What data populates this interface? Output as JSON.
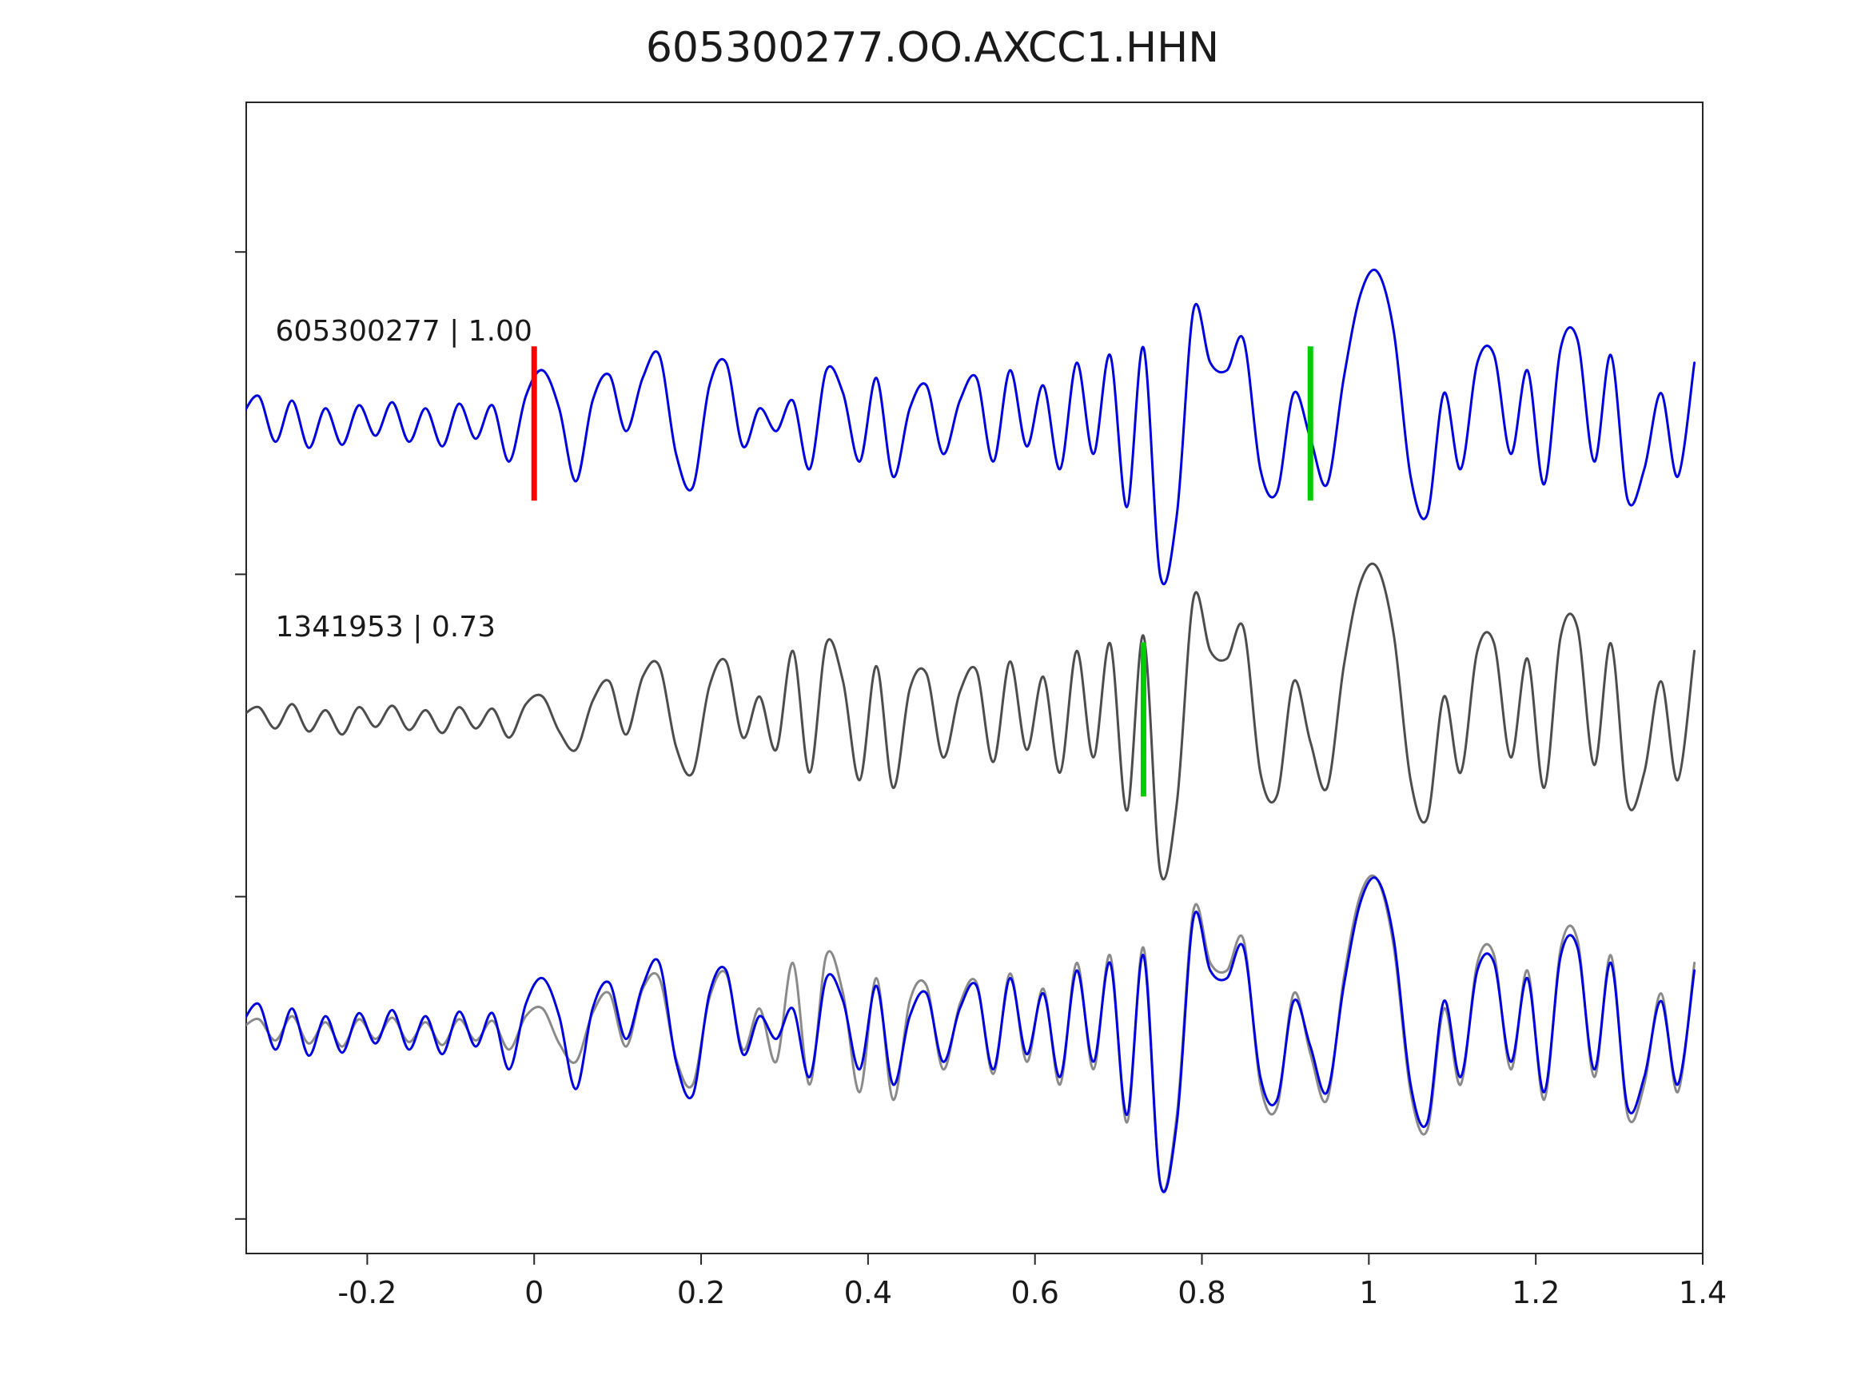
{
  "title": "605300277.OO.AXCC1.HHN",
  "colors": {
    "template_blue": "#0000dd",
    "detection_gray": "#4d4d4d",
    "overlay_gray": "#8a8a8a",
    "pick_red": "#ff0000",
    "pick_green": "#00cc00",
    "frame": "#262626",
    "text": "#1a1a1a"
  },
  "chart_data": {
    "type": "line",
    "title": "605300277.OO.AXCC1.HHN",
    "xlabel": "",
    "ylabel": "",
    "grid": false,
    "legend": null,
    "xlim": [
      -0.345,
      1.4
    ],
    "x_ticks": [
      -0.2,
      0,
      0.2,
      0.4,
      0.6,
      0.8,
      1,
      1.2,
      1.4
    ],
    "x_tick_labels": [
      "-0.2",
      "0",
      "0.2",
      "0.4",
      "0.6",
      "0.8",
      "1",
      "1.2",
      "1.4"
    ],
    "x_start": -0.35,
    "x_step": 0.02,
    "series": {
      "template": {
        "name": "605300277",
        "color": "#0000dd",
        "values": [
          0.05,
          0.18,
          -0.12,
          0.15,
          -0.16,
          0.1,
          -0.14,
          0.12,
          -0.08,
          0.14,
          -0.12,
          0.1,
          -0.15,
          0.13,
          -0.1,
          0.12,
          -0.25,
          0.18,
          0.35,
          0.1,
          -0.38,
          0.15,
          0.32,
          -0.05,
          0.3,
          0.45,
          -0.2,
          -0.42,
          0.25,
          0.4,
          -0.15,
          0.1,
          -0.05,
          0.15,
          -0.3,
          0.35,
          0.2,
          -0.25,
          0.3,
          -0.35,
          0.1,
          0.25,
          -0.2,
          0.15,
          0.3,
          -0.25,
          0.35,
          -0.15,
          0.25,
          -0.3,
          0.4,
          -0.2,
          0.45,
          -0.55,
          0.5,
          -1.0,
          -0.6,
          0.75,
          0.4,
          0.35,
          0.55,
          -0.3,
          -0.45,
          0.2,
          -0.1,
          -0.4,
          0.3,
          0.85,
          1.0,
          0.6,
          -0.35,
          -0.6,
          0.2,
          -0.3,
          0.4,
          0.45,
          -0.2,
          0.35,
          -0.4,
          0.5,
          0.55,
          -0.25,
          0.45,
          -0.5,
          -0.3,
          0.2,
          -0.35,
          0.4
        ]
      },
      "detection": {
        "name": "1341953",
        "color": "#4d4d4d",
        "values": [
          0.02,
          0.08,
          -0.06,
          0.1,
          -0.08,
          0.06,
          -0.1,
          0.08,
          -0.05,
          0.09,
          -0.07,
          0.06,
          -0.09,
          0.08,
          -0.06,
          0.07,
          -0.12,
          0.1,
          0.15,
          -0.08,
          -0.2,
          0.12,
          0.25,
          -0.1,
          0.28,
          0.35,
          -0.18,
          -0.35,
          0.22,
          0.38,
          -0.12,
          0.15,
          -0.2,
          0.45,
          -0.35,
          0.5,
          0.25,
          -0.4,
          0.35,
          -0.45,
          0.2,
          0.3,
          -0.25,
          0.18,
          0.32,
          -0.28,
          0.38,
          -0.2,
          0.28,
          -0.35,
          0.45,
          -0.25,
          0.5,
          -0.6,
          0.55,
          -1.0,
          -0.55,
          0.8,
          0.45,
          0.4,
          0.6,
          -0.35,
          -0.5,
          0.25,
          -0.15,
          -0.45,
          0.35,
          0.9,
          1.0,
          0.55,
          -0.4,
          -0.65,
          0.15,
          -0.35,
          0.45,
          0.5,
          -0.25,
          0.4,
          -0.45,
          0.55,
          0.6,
          -0.3,
          0.5,
          -0.55,
          -0.35,
          0.25,
          -0.4,
          0.45
        ]
      }
    },
    "panels": [
      {
        "label": "605300277 | 1.00",
        "traces": [
          {
            "ref": "template",
            "color": "#0000dd"
          }
        ],
        "markers": [
          {
            "t": 0.0,
            "color": "#ff0000",
            "name": "template-pick"
          },
          {
            "t": 0.93,
            "color": "#00cc00",
            "name": "detection-pick"
          }
        ]
      },
      {
        "label": "1341953 | 0.73",
        "traces": [
          {
            "ref": "detection",
            "color": "#4d4d4d"
          }
        ],
        "markers": [
          {
            "t": 0.73,
            "color": "#00cc00",
            "name": "detection-pick"
          }
        ]
      },
      {
        "label": "",
        "traces": [
          {
            "ref": "detection",
            "color": "#8a8a8a"
          },
          {
            "ref": "template",
            "color": "#0000dd"
          }
        ],
        "markers": []
      }
    ]
  }
}
